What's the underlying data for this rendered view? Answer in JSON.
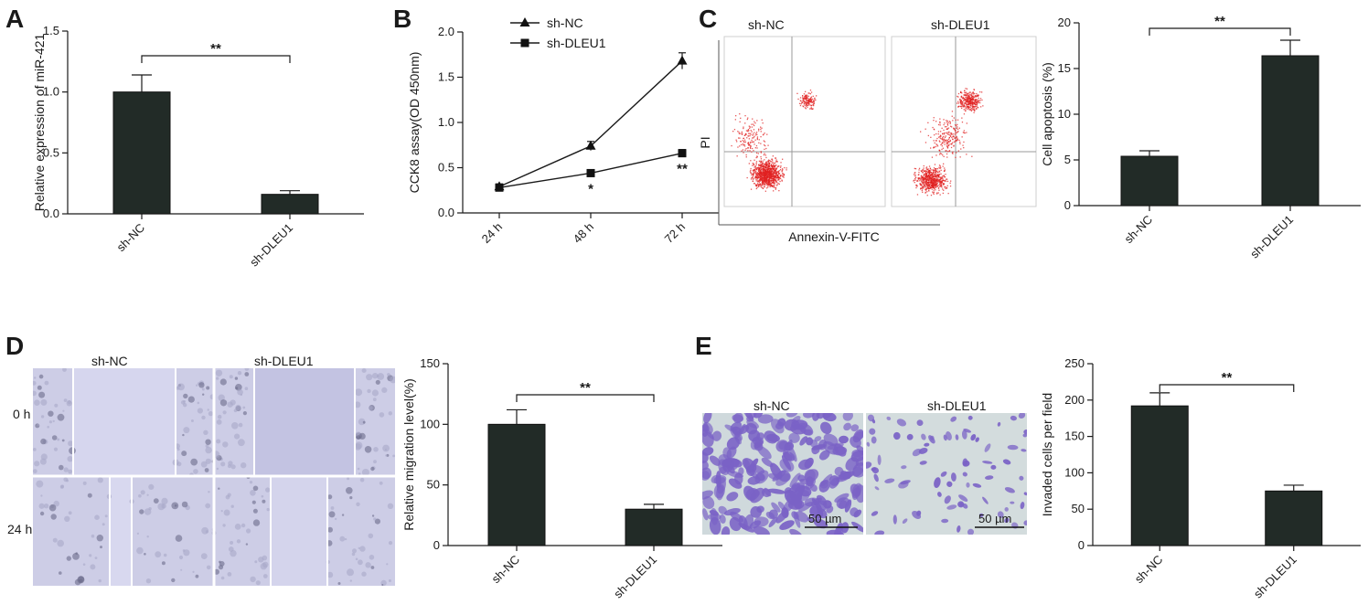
{
  "colors": {
    "bar": "#222b27",
    "axis": "#1a1a1a",
    "flow_dot": "#e02020",
    "scratch_bg": "#cdcde6",
    "transwell_bg": "#cfd9dc",
    "cell_stain": "#7a62c6"
  },
  "chart_data": [
    {
      "panel": "A",
      "type": "bar",
      "categories": [
        "sh-NC",
        "sh-DLEU1"
      ],
      "values": [
        1.0,
        0.16
      ],
      "errors": [
        0.14,
        0.03
      ],
      "ylabel": "Relative expression of miR-421",
      "ylim": [
        0,
        1.5
      ],
      "yticks": [
        "0.0",
        "0.5",
        "1.0",
        "1.5"
      ],
      "significance": "**"
    },
    {
      "panel": "B",
      "type": "line",
      "x": [
        "24 h",
        "48 h",
        "72 h"
      ],
      "series": [
        {
          "name": "sh-NC",
          "marker": "triangle",
          "values": [
            0.29,
            0.74,
            1.68
          ],
          "errors": [
            0.03,
            0.05,
            0.09
          ]
        },
        {
          "name": "sh-DLEU1",
          "marker": "square",
          "values": [
            0.28,
            0.44,
            0.66
          ],
          "errors": [
            0.03,
            0.03,
            0.04
          ]
        }
      ],
      "ylabel": "CCK8 assay(OD 450nm)",
      "ylim": [
        0,
        2.0
      ],
      "yticks": [
        "0.0",
        "0.5",
        "1.0",
        "1.5",
        "2.0"
      ],
      "point_significance": [
        "",
        "*",
        "**"
      ]
    },
    {
      "panel": "C",
      "type": "bar",
      "categories": [
        "sh-NC",
        "sh-DLEU1"
      ],
      "values": [
        5.4,
        16.4
      ],
      "errors": [
        0.6,
        1.7
      ],
      "ylabel": "Cell apoptosis (%)",
      "ylim": [
        0,
        20
      ],
      "yticks": [
        "0",
        "5",
        "10",
        "15",
        "20"
      ],
      "significance": "**",
      "flow_images": [
        "sh-NC",
        "sh-DLEU1"
      ],
      "flow_xlabel": "Annexin-V-FITC",
      "flow_ylabel": "PI"
    },
    {
      "panel": "D",
      "type": "bar",
      "categories": [
        "sh-NC",
        "sh-DLEU1"
      ],
      "values": [
        100,
        30
      ],
      "errors": [
        12,
        4
      ],
      "ylabel": "Relative migration level(%)",
      "ylim": [
        0,
        150
      ],
      "yticks": [
        "0",
        "50",
        "100",
        "150"
      ],
      "significance": "**",
      "image_columns": [
        "sh-NC",
        "sh-DLEU1"
      ],
      "image_rows": [
        "0 h",
        "24 h"
      ]
    },
    {
      "panel": "E",
      "type": "bar",
      "categories": [
        "sh-NC",
        "sh-DLEU1"
      ],
      "values": [
        192,
        75
      ],
      "errors": [
        18,
        8
      ],
      "ylabel": "Invaded cells per field",
      "ylim": [
        0,
        250
      ],
      "yticks": [
        "0",
        "50",
        "100",
        "150",
        "200",
        "250"
      ],
      "significance": "**",
      "image_labels": [
        "sh-NC",
        "sh-DLEU1"
      ],
      "scale_bar": "50 µm"
    }
  ]
}
